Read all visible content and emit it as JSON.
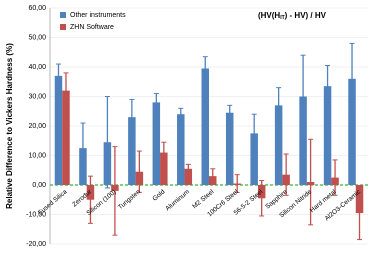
{
  "chart_data": {
    "type": "bar",
    "ylabel": "Relative Difference to Vickers Hardness (%)",
    "annotation": [
      "(HV(H",
      "IT",
      ") - HV) / HV"
    ],
    "categories": [
      "Fused Silica",
      "Zerodur",
      "Silicon (100)",
      "Tungsten",
      "Gold",
      "Aluminum",
      "M2 Steel",
      "100Cr6 Steel",
      "56-5-2 Steel",
      "Sapphire",
      "Silicon Nitride",
      "Hard metal",
      "Al2O3-Ceramic"
    ],
    "series": [
      {
        "name": "Other instruments",
        "color": "#4f81bd",
        "values": [
          37,
          12.5,
          14.5,
          23,
          28,
          24,
          39.5,
          24.5,
          17.5,
          27,
          30,
          33.5,
          36
        ],
        "errors": [
          4,
          8.5,
          15.5,
          6,
          3,
          2,
          4,
          2.5,
          6.5,
          6,
          14,
          7,
          12
        ]
      },
      {
        "name": "ZHN Software",
        "color": "#c0504d",
        "values": [
          32,
          -5,
          -2,
          4.5,
          11,
          5.5,
          3,
          0.5,
          -4.5,
          3.5,
          1,
          2.5,
          -9.5
        ],
        "errors": [
          6,
          8,
          15,
          7,
          3.5,
          1.5,
          2.5,
          3,
          6,
          7,
          14.5,
          6,
          9
        ]
      }
    ],
    "ylim": [
      -20,
      60
    ],
    "yticks": [
      {
        "value": -20,
        "label": "-20,00"
      },
      {
        "value": -10,
        "label": "-10,00"
      },
      {
        "value": 0,
        "label": "0,00"
      },
      {
        "value": 10,
        "label": "10,00"
      },
      {
        "value": 20,
        "label": "20,00"
      },
      {
        "value": 30,
        "label": "30,00"
      },
      {
        "value": 40,
        "label": "40,00"
      },
      {
        "value": 50,
        "label": "50,00"
      },
      {
        "value": 60,
        "label": "60,00"
      }
    ],
    "grid": true,
    "legend": "top-left"
  }
}
